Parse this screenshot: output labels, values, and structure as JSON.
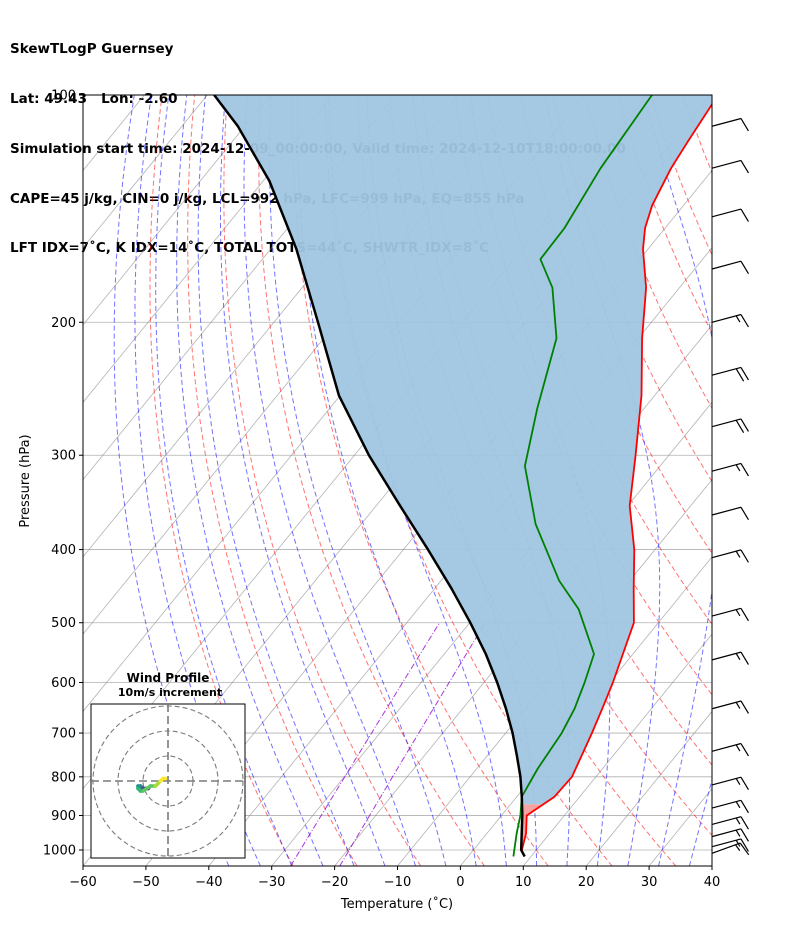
{
  "header": {
    "line1": "SkewTLogP Guernsey",
    "line2": "Lat: 49.43   Lon: -2.60",
    "line3": "Simulation start time: 2024-12-09_00:00:00, Valid time: 2024-12-10T18:00:00.00",
    "line4": "CAPE=45 j/kg, CIN=0 j/kg, LCL=992 hPa, LFC=999 hPa, EQ=855 hPa",
    "line5": "LFT IDX=7˚C, K IDX=14˚C, TOTAL TOTS=44˚C, SHWTR_IDX=8˚C"
  },
  "chart_data": {
    "type": "line",
    "title": "SkewTLogP Guernsey",
    "xlabel": "Temperature (˚C)",
    "ylabel": "Pressure (hPa)",
    "xlim": [
      -60,
      40
    ],
    "ylim": [
      1050,
      100
    ],
    "y_scale": "log",
    "x_ticks": [
      "−60",
      "−50",
      "−40",
      "−30",
      "−20",
      "−10",
      "0",
      "10",
      "20",
      "30",
      "40"
    ],
    "y_ticks": [
      "100",
      "200",
      "300",
      "400",
      "500",
      "600",
      "700",
      "800",
      "900",
      "1000"
    ],
    "grid": true,
    "series": [
      {
        "kind": "temperature",
        "color": "#ff0000",
        "points": [
          [
            7.7,
            1000
          ],
          [
            6.2,
            950
          ],
          [
            4.0,
            900
          ],
          [
            6.0,
            850
          ],
          [
            6.2,
            800
          ],
          [
            5.0,
            750
          ],
          [
            3.7,
            700
          ],
          [
            2.2,
            650
          ],
          [
            0.5,
            600
          ],
          [
            -1.6,
            550
          ],
          [
            -3.9,
            500
          ],
          [
            -8.4,
            450
          ],
          [
            -13.3,
            400
          ],
          [
            -19.7,
            350
          ],
          [
            -25.3,
            300
          ],
          [
            -32.1,
            250
          ],
          [
            -39.4,
            210
          ],
          [
            -45.3,
            180
          ],
          [
            -50.8,
            160
          ],
          [
            -53.2,
            150
          ],
          [
            -55.0,
            140
          ],
          [
            -56.8,
            125
          ],
          [
            -57.6,
            115
          ],
          [
            -58.8,
            100
          ]
        ]
      },
      {
        "kind": "dewpoint",
        "color": "#008000",
        "points": [
          [
            7.2,
            1020
          ],
          [
            6.5,
            1000
          ],
          [
            4.7,
            950
          ],
          [
            3.0,
            900
          ],
          [
            0.8,
            850
          ],
          [
            -0.3,
            780
          ],
          [
            -1.1,
            700
          ],
          [
            -2.2,
            650
          ],
          [
            -4.0,
            600
          ],
          [
            -6.2,
            550
          ],
          [
            -14.4,
            480
          ],
          [
            -21.2,
            440
          ],
          [
            -32.3,
            370
          ],
          [
            -41.5,
            310
          ],
          [
            -47.0,
            260
          ],
          [
            -53.0,
            210
          ],
          [
            -60.2,
            180
          ],
          [
            -65.8,
            165
          ],
          [
            -66.0,
            150
          ],
          [
            -68.0,
            125
          ],
          [
            -69.3,
            100
          ]
        ]
      },
      {
        "kind": "parcel",
        "color": "#000000",
        "points": [
          [
            9.0,
            1020
          ],
          [
            7.6,
            1000
          ],
          [
            5.5,
            950
          ],
          [
            3.3,
            900
          ],
          [
            0.8,
            850
          ],
          [
            -2.0,
            800
          ],
          [
            -5.3,
            750
          ],
          [
            -8.9,
            700
          ],
          [
            -13.1,
            650
          ],
          [
            -17.9,
            600
          ],
          [
            -23.4,
            550
          ],
          [
            -29.9,
            500
          ],
          [
            -37.4,
            450
          ],
          [
            -46.1,
            400
          ],
          [
            -56.2,
            350
          ],
          [
            -67.7,
            300
          ],
          [
            -80.2,
            250
          ],
          [
            -93.0,
            200
          ],
          [
            -105.9,
            160
          ],
          [
            -119.0,
            130
          ],
          [
            -131.1,
            110
          ],
          [
            -138.9,
            100
          ]
        ]
      }
    ],
    "fill_cape": {
      "color": "#f4a09c",
      "between": [
        "temperature",
        "parcel"
      ],
      "p_range": [
        1000,
        870
      ]
    },
    "fill_cin": {
      "color": "#a0c6e0",
      "between": [
        "temperature",
        "parcel"
      ],
      "p_range": [
        870,
        100
      ]
    },
    "background_lines": {
      "dry_adiabats": "#ff0000",
      "moist_adiabats": "#0000ff",
      "mixing_ratio": "#9400d3",
      "isotherms": "#808080"
    },
    "wind_barbs": {
      "units": "m/s",
      "levels": [
        {
          "p": 1010,
          "speed": 15,
          "dir": 250
        },
        {
          "p": 990,
          "speed": 15,
          "dir": 255
        },
        {
          "p": 960,
          "speed": 15,
          "dir": 255
        },
        {
          "p": 925,
          "speed": 15,
          "dir": 255
        },
        {
          "p": 880,
          "speed": 15,
          "dir": 255
        },
        {
          "p": 820,
          "speed": 15,
          "dir": 255
        },
        {
          "p": 740,
          "speed": 15,
          "dir": 255
        },
        {
          "p": 650,
          "speed": 15,
          "dir": 255
        },
        {
          "p": 560,
          "speed": 15,
          "dir": 255
        },
        {
          "p": 490,
          "speed": 15,
          "dir": 255
        },
        {
          "p": 410,
          "speed": 15,
          "dir": 255
        },
        {
          "p": 360,
          "speed": 10,
          "dir": 255
        },
        {
          "p": 315,
          "speed": 15,
          "dir": 255
        },
        {
          "p": 275,
          "speed": 20,
          "dir": 255
        },
        {
          "p": 235,
          "speed": 20,
          "dir": 255
        },
        {
          "p": 200,
          "speed": 15,
          "dir": 255
        },
        {
          "p": 170,
          "speed": 10,
          "dir": 255
        },
        {
          "p": 145,
          "speed": 10,
          "dir": 255
        },
        {
          "p": 125,
          "speed": 10,
          "dir": 255
        },
        {
          "p": 110,
          "speed": 10,
          "dir": 255
        }
      ]
    },
    "hodograph": {
      "title": "Wind Profile",
      "subtitle": "10m/s increment",
      "ring_increment": 10,
      "points": [
        [
          -7,
          -2
        ],
        [
          -8,
          -3
        ],
        [
          -9,
          -3
        ],
        [
          -10,
          -3
        ],
        [
          -11,
          -2
        ],
        [
          -12,
          -2
        ],
        [
          -12,
          -3
        ],
        [
          -11,
          -4
        ],
        [
          -10,
          -4
        ],
        [
          -7,
          -2
        ],
        [
          -5,
          -2
        ],
        [
          -4,
          -1
        ],
        [
          -3,
          0
        ],
        [
          -2,
          1
        ],
        [
          -1,
          1
        ]
      ]
    }
  }
}
